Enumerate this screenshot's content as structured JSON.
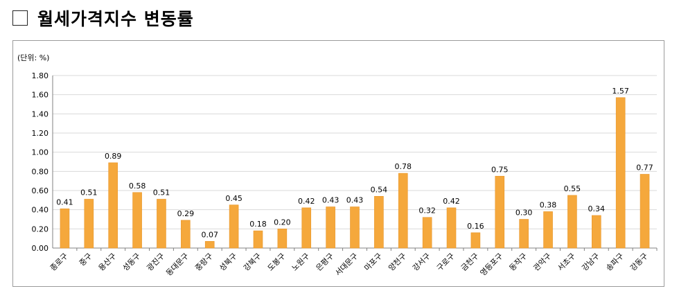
{
  "header": {
    "checkbox_icon": "empty-checkbox-icon",
    "title": "월세가격지수 변동률"
  },
  "chart_data": {
    "type": "bar",
    "unit_label": "(단위: %)",
    "categories": [
      "종로구",
      "중구",
      "용산구",
      "성동구",
      "광진구",
      "동대문구",
      "중랑구",
      "성북구",
      "강북구",
      "도봉구",
      "노원구",
      "은평구",
      "서대문구",
      "마포구",
      "양천구",
      "강서구",
      "구로구",
      "금천구",
      "영등포구",
      "동작구",
      "관악구",
      "서초구",
      "강남구",
      "송파구",
      "강동구"
    ],
    "values": [
      0.41,
      0.51,
      0.89,
      0.58,
      0.51,
      0.29,
      0.07,
      0.45,
      0.18,
      0.2,
      0.42,
      0.43,
      0.43,
      0.54,
      0.78,
      0.32,
      0.42,
      0.16,
      0.75,
      0.3,
      0.38,
      0.55,
      0.34,
      1.57,
      0.77
    ],
    "data_labels": [
      "0.41",
      "0.51",
      "0.89",
      "0.58",
      "0.51",
      "0.29",
      "0.07",
      "0.45",
      "0.18",
      "0.20",
      "0.42",
      "0.43",
      "0.43",
      "0.54",
      "0.78",
      "0.32",
      "0.42",
      "0.16",
      "0.75",
      "0.30",
      "0.38",
      "0.55",
      "0.34",
      "1.57",
      "0.77"
    ],
    "y_ticks": [
      "0.00",
      "0.20",
      "0.40",
      "0.60",
      "0.80",
      "1.00",
      "1.20",
      "1.40",
      "1.60",
      "1.80"
    ],
    "ylim": [
      0,
      1.8
    ],
    "grid": true,
    "legend": "none",
    "colors": {
      "bar": "#F5A83C",
      "bar_stroke": "#E8962A",
      "grid": "#D9D9D9",
      "axis": "#808080"
    }
  }
}
